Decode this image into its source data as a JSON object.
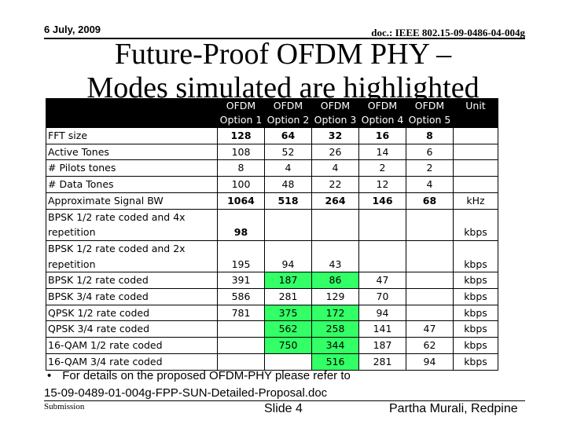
{
  "header": {
    "date": "6 July, 2009",
    "doc_id": "doc.: IEEE 802.15-09-0486-04-004g"
  },
  "title_lines": [
    "Future-Proof OFDM PHY –",
    "Modes simulated are highlighted"
  ],
  "table": {
    "columns": [
      {
        "line1": "OFDM",
        "line2": "Option 1"
      },
      {
        "line1": "OFDM",
        "line2": "Option 2"
      },
      {
        "line1": "OFDM",
        "line2": "Option 3"
      },
      {
        "line1": "OFDM",
        "line2": "Option 4"
      },
      {
        "line1": "OFDM",
        "line2": "Option 5"
      },
      {
        "line1": "Unit",
        "line2": ""
      }
    ],
    "rows": [
      {
        "label": "FFT size",
        "cells": [
          "128",
          "64",
          "32",
          "16",
          "8",
          ""
        ],
        "bold": true,
        "highlight": []
      },
      {
        "label": "Active Tones",
        "cells": [
          "108",
          "52",
          "26",
          "14",
          "6",
          ""
        ],
        "bold": false,
        "highlight": []
      },
      {
        "label": "# Pilots tones",
        "cells": [
          "8",
          "4",
          "4",
          "2",
          "2",
          ""
        ],
        "bold": false,
        "highlight": []
      },
      {
        "label": "# Data Tones",
        "cells": [
          "100",
          "48",
          "22",
          "12",
          "4",
          ""
        ],
        "bold": false,
        "highlight": []
      },
      {
        "label": "Approximate Signal BW",
        "cells": [
          "1064",
          "518",
          "264",
          "146",
          "68",
          "kHz"
        ],
        "bold": true,
        "highlight": []
      },
      {
        "label": "BPSK 1/2 rate coded and 4x",
        "label2": "repetition",
        "cells": [
          "98",
          "",
          "",
          "",
          "",
          "kbps"
        ],
        "bold": true,
        "highlight": []
      },
      {
        "label": "BPSK 1/2 rate coded and 2x",
        "label2": "repetition",
        "cells": [
          "195",
          "94",
          "43",
          "",
          "",
          "kbps"
        ],
        "bold": false,
        "highlight": []
      },
      {
        "label": "BPSK 1/2 rate coded",
        "cells": [
          "391",
          "187",
          "86",
          "47",
          "",
          "kbps"
        ],
        "bold": false,
        "highlight": [
          1,
          2
        ]
      },
      {
        "label": "BPSK 3/4 rate coded",
        "cells": [
          "586",
          "281",
          "129",
          "70",
          "",
          "kbps"
        ],
        "bold": false,
        "highlight": []
      },
      {
        "label": "QPSK 1/2 rate coded",
        "cells": [
          "781",
          "375",
          "172",
          "94",
          "",
          "kbps"
        ],
        "bold": false,
        "highlight": [
          1,
          2
        ]
      },
      {
        "label": "QPSK 3/4 rate coded",
        "cells": [
          "",
          "562",
          "258",
          "141",
          "47",
          "kbps"
        ],
        "bold": false,
        "highlight": [
          1,
          2
        ]
      },
      {
        "label": "16-QAM 1/2 rate coded",
        "cells": [
          "",
          "750",
          "344",
          "187",
          "62",
          "kbps"
        ],
        "bold": false,
        "highlight": [
          1,
          2
        ]
      },
      {
        "label": "16-QAM 3/4 rate coded",
        "cells": [
          "",
          "",
          "516",
          "281",
          "94",
          "kbps"
        ],
        "bold": false,
        "highlight": [
          2
        ]
      }
    ]
  },
  "bullet": {
    "symbol": "•",
    "line1": "For details on the proposed OFDM-PHY please refer to",
    "line2": "15-09-0489-01-004g-FPP-SUN-Detailed-Proposal.doc"
  },
  "footer": {
    "left": "Submission",
    "center": "Slide 4",
    "right": "Partha Murali, Redpine"
  },
  "colors": {
    "highlight": "#33ff66",
    "header_bg": "#000000"
  }
}
